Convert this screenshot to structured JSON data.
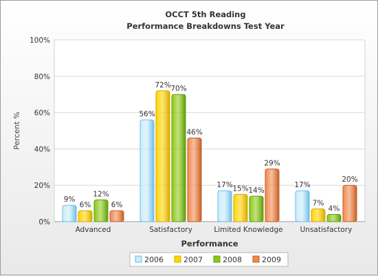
{
  "chart_data": {
    "type": "bar",
    "title": [
      "OCCT 5th Reading",
      "Performance Breakdowns Test Year"
    ],
    "xlabel": "Performance",
    "ylabel": "Percent %",
    "categories": [
      "Advanced",
      "Satisfactory",
      "Limited Knowledge",
      "Unsatisfactory"
    ],
    "series": [
      {
        "name": "2006",
        "values": [
          9,
          56,
          17,
          17
        ],
        "color": "#c9ecfb",
        "stroke": "#6cbde6"
      },
      {
        "name": "2007",
        "values": [
          6,
          72,
          15,
          7
        ],
        "color": "#ffd400",
        "stroke": "#d7a800"
      },
      {
        "name": "2008",
        "values": [
          12,
          70,
          14,
          4
        ],
        "color": "#8cc915",
        "stroke": "#5e9c0a"
      },
      {
        "name": "2009",
        "values": [
          6,
          46,
          29,
          20
        ],
        "color": "#f0884d",
        "stroke": "#c65d22"
      }
    ],
    "ylim": [
      0,
      100
    ],
    "yticks": [
      "0%",
      "20%",
      "40%",
      "60%",
      "80%",
      "100%"
    ],
    "value_suffix": "%",
    "grid": true,
    "legend_position": "bottom"
  }
}
